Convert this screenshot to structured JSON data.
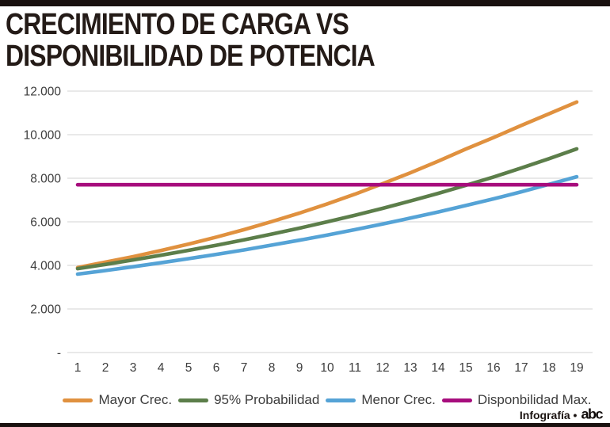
{
  "header": {
    "title_line1": "CRECIMIENTO DE CARGA VS",
    "title_line2": "DISPONIBILIDAD DE POTENCIA"
  },
  "footer": {
    "credit": "Infografía •",
    "logo_text": "abc"
  },
  "colors": {
    "accent_bar": "#19110f",
    "grid": "#dcdcdc",
    "axis_text": "#3d3d3d"
  },
  "chart_data": {
    "type": "line",
    "title": "CRECIMIENTO DE CARGA VS DISPONIBILIDAD DE POTENCIA",
    "xlabel": "",
    "ylabel": "",
    "x": [
      1,
      2,
      3,
      4,
      5,
      6,
      7,
      8,
      9,
      10,
      11,
      12,
      13,
      14,
      15,
      16,
      17,
      18,
      19
    ],
    "ylim": [
      0,
      12000
    ],
    "yticks": [
      "12.000",
      "10.000",
      "8.000",
      "6.000",
      "4.000",
      "2.000",
      "-"
    ],
    "ytick_values": [
      12000,
      10000,
      8000,
      6000,
      4000,
      2000,
      0
    ],
    "grid": "horizontal",
    "legend_position": "bottom",
    "series": [
      {
        "name": "Mayor Crec.",
        "color": "#E0913F",
        "values": [
          3900,
          4150,
          4400,
          4680,
          4980,
          5300,
          5640,
          6010,
          6400,
          6820,
          7270,
          7750,
          8250,
          8780,
          9340,
          9870,
          10420,
          10960,
          11500
        ]
      },
      {
        "name": "95% Probabilidad",
        "color": "#5C7E4A",
        "values": [
          3850,
          4045,
          4250,
          4465,
          4690,
          4925,
          5175,
          5435,
          5710,
          6000,
          6300,
          6620,
          6955,
          7305,
          7675,
          8060,
          8470,
          8900,
          9350
        ]
      },
      {
        "name": "Menor Crec.",
        "color": "#55A3D6",
        "values": [
          3600,
          3765,
          3940,
          4120,
          4310,
          4505,
          4710,
          4930,
          5155,
          5390,
          5640,
          5900,
          6170,
          6450,
          6750,
          7055,
          7380,
          7720,
          8070
        ]
      },
      {
        "name": "Disponbilidad Max.",
        "color": "#A70D7D",
        "values": [
          7700,
          7700,
          7700,
          7700,
          7700,
          7700,
          7700,
          7700,
          7700,
          7700,
          7700,
          7700,
          7700,
          7700,
          7700,
          7700,
          7700,
          7700,
          7700
        ]
      }
    ]
  }
}
